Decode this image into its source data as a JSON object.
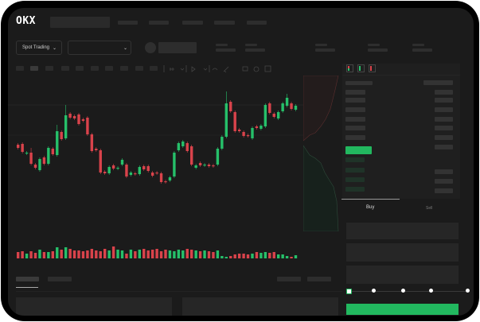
{
  "brand": {
    "logo_text": "OKX"
  },
  "header": {
    "market_selector_label": "Spot Trading",
    "market_selector_icon": "chevron-down-icon",
    "pair_selector_icon": "chevron-down-icon"
  },
  "order_form": {
    "tabs": [
      {
        "label": "Buy",
        "active": true
      },
      {
        "label": "Sell",
        "active": false
      }
    ],
    "slider_steps": 5,
    "slider_value_percent": 0
  },
  "colors": {
    "up": "#26c06a",
    "down": "#d9434b",
    "accent": "#22b85f",
    "background": "#1b1b1b"
  },
  "candles": [
    [
      58,
      54
    ],
    [
      59,
      49
    ],
    [
      47,
      48
    ],
    [
      48,
      34,
      54
    ],
    [
      33,
      29
    ],
    [
      26,
      40
    ],
    [
      42,
      34
    ],
    [
      34,
      54
    ],
    [
      53,
      46
    ],
    [
      45,
      75,
      83
    ],
    [
      74,
      65
    ],
    [
      66,
      95,
      108
    ],
    [
      97,
      92
    ],
    [
      94,
      91
    ],
    [
      96,
      84
    ],
    [
      90,
      88
    ],
    [
      92,
      71
    ],
    [
      71,
      50
    ],
    [
      53,
      51
    ],
    [
      51,
      23
    ],
    [
      24,
      22
    ],
    [
      22,
      30
    ],
    [
      32,
      28
    ],
    [
      28,
      29
    ],
    [
      33,
      39
    ],
    [
      33,
      18
    ],
    [
      20,
      23
    ],
    [
      22,
      21
    ],
    [
      21,
      30
    ],
    [
      31,
      27
    ],
    [
      31,
      25
    ],
    [
      23,
      19
    ],
    [
      23,
      22
    ],
    [
      22,
      11
    ],
    [
      12,
      11
    ],
    [
      13,
      17
    ],
    [
      18,
      48
    ],
    [
      51,
      60
    ],
    [
      56,
      62
    ],
    [
      60,
      50
    ],
    [
      56,
      33
    ],
    [
      29,
      32
    ],
    [
      35,
      32
    ],
    [
      32,
      33
    ],
    [
      33,
      31
    ],
    [
      32,
      31
    ],
    [
      33,
      53
    ],
    [
      53,
      68
    ],
    [
      68,
      110,
      125
    ],
    [
      112,
      100
    ],
    [
      99,
      75
    ],
    [
      77,
      75
    ],
    [
      74,
      69
    ],
    [
      70,
      69
    ],
    [
      66,
      79
    ],
    [
      81,
      79
    ],
    [
      78,
      82
    ],
    [
      81,
      108
    ],
    [
      110,
      98
    ],
    [
      97,
      93
    ],
    [
      91,
      99
    ],
    [
      100,
      110
    ],
    [
      107,
      117,
      122
    ],
    [
      110,
      103
    ],
    [
      102,
      107
    ]
  ],
  "volumes": [
    8,
    9,
    6,
    9,
    7,
    11,
    8,
    8,
    9,
    14,
    11,
    14,
    12,
    10,
    10,
    9,
    10,
    12,
    10,
    9,
    12,
    10,
    15,
    11,
    10,
    6,
    11,
    9,
    11,
    12,
    10,
    11,
    12,
    9,
    11,
    10,
    9,
    11,
    10,
    12,
    11,
    10,
    9,
    10,
    9,
    8,
    10,
    3,
    2,
    3,
    5,
    6,
    6,
    5,
    6,
    8,
    7,
    8,
    7,
    8,
    5,
    5,
    3,
    2,
    4
  ]
}
